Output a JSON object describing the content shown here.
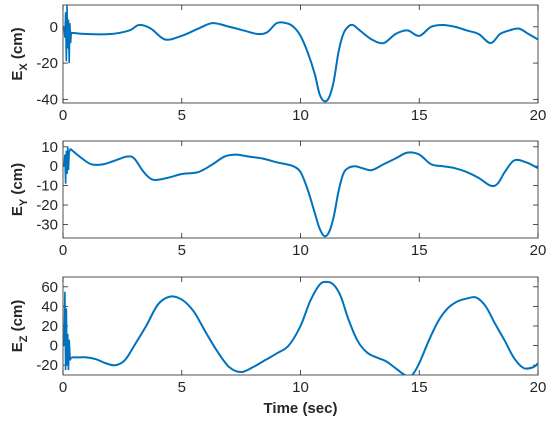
{
  "chart_data": [
    {
      "type": "line",
      "ylabel": "E",
      "ylabel_sub": "X",
      "ylabel_unit": " (cm)",
      "xlim": [
        0,
        20
      ],
      "ylim": [
        -42,
        12
      ],
      "xticks": [
        "0",
        "5",
        "10",
        "15",
        "20"
      ],
      "yticks": [
        -40,
        -20,
        0
      ],
      "color": "#0072BD",
      "grid": false,
      "series": [
        {
          "x": [
            0.1,
            1,
            2,
            2.8,
            3.2,
            3.7,
            4.3,
            5.0,
            5.7,
            6.3,
            7.0,
            7.6,
            8.2,
            8.6,
            9.0,
            9.4,
            9.7,
            10.0,
            10.3,
            10.6,
            10.8,
            11.0,
            11.2,
            11.4,
            11.6,
            11.8,
            12.0,
            12.2,
            12.5,
            13.0,
            13.5,
            14.0,
            14.5,
            15.0,
            15.5,
            16.0,
            16.5,
            17.0,
            17.5,
            18.0,
            18.4,
            18.8,
            19.2,
            19.6,
            20.0
          ],
          "y": [
            -3,
            -4,
            -4,
            -2,
            1,
            -1,
            -7,
            -5,
            -1,
            2,
            0,
            -2,
            -4,
            -3,
            2,
            2,
            0,
            -5,
            -14,
            -26,
            -37,
            -41,
            -39,
            -30,
            -14,
            -4,
            0,
            1,
            -2,
            -7,
            -9,
            -4,
            -2,
            -5,
            0,
            1,
            0,
            -2,
            -4,
            -9,
            -4,
            -2,
            -1,
            -4,
            -7
          ]
        }
      ],
      "transient": {
        "x": [
          0.05,
          0.08,
          0.11,
          0.14,
          0.17,
          0.2,
          0.23,
          0.26,
          0.29,
          0.32,
          0.35,
          0.38
        ],
        "y": [
          0,
          -6,
          8,
          -19,
          12,
          -12,
          4,
          -20,
          2,
          -9,
          -3,
          -4
        ]
      }
    },
    {
      "type": "line",
      "ylabel": "E",
      "ylabel_sub": "Y",
      "ylabel_unit": " (cm)",
      "xlim": [
        0,
        20
      ],
      "ylim": [
        -37,
        13
      ],
      "xticks": [
        "0",
        "5",
        "10",
        "15",
        "20"
      ],
      "yticks": [
        -30,
        -20,
        -10,
        0,
        10
      ],
      "color": "#0072BD",
      "grid": false,
      "series": [
        {
          "x": [
            0.3,
            0.8,
            1.2,
            1.7,
            2.2,
            2.7,
            3.0,
            3.4,
            3.8,
            4.4,
            5.0,
            5.7,
            6.3,
            6.8,
            7.3,
            7.8,
            8.4,
            9.0,
            9.4,
            9.7,
            10.0,
            10.3,
            10.6,
            10.8,
            11.0,
            11.2,
            11.4,
            11.6,
            11.8,
            12.0,
            12.3,
            12.6,
            13.0,
            13.5,
            14.0,
            14.5,
            15.0,
            15.5,
            16.0,
            16.5,
            17.0,
            17.5,
            18.0,
            18.3,
            18.6,
            19.0,
            19.5,
            20.0
          ],
          "y": [
            9,
            4,
            1,
            1,
            3,
            5,
            4,
            -3,
            -7,
            -6,
            -4,
            -3,
            1,
            5,
            6,
            5,
            4,
            2,
            1,
            0,
            -3,
            -12,
            -24,
            -32,
            -36,
            -34,
            -26,
            -13,
            -4,
            -1,
            0,
            -1,
            -2,
            1,
            4,
            7,
            6,
            1,
            0,
            -1,
            -3,
            -6,
            -10,
            -9,
            -3,
            3,
            2,
            -1
          ]
        }
      ],
      "transient": {
        "x": [
          0.05,
          0.08,
          0.11,
          0.14,
          0.17,
          0.2,
          0.23,
          0.26,
          0.3
        ],
        "y": [
          0,
          6,
          -9,
          8,
          -4,
          10,
          -2,
          7,
          9
        ]
      }
    },
    {
      "type": "line",
      "ylabel": "E",
      "ylabel_sub": "Z",
      "ylabel_unit": " (cm)",
      "xlim": [
        0,
        20
      ],
      "ylim": [
        -30,
        70
      ],
      "xticks": [
        "0",
        "5",
        "10",
        "15",
        "20"
      ],
      "yticks": [
        -20,
        0,
        20,
        40,
        60
      ],
      "color": "#0072BD",
      "grid": false,
      "xlabel": "Time (sec)",
      "series": [
        {
          "x": [
            0.35,
            0.7,
            1.0,
            1.4,
            1.8,
            2.2,
            2.6,
            3.0,
            3.5,
            4.0,
            4.5,
            5.0,
            5.5,
            6.0,
            6.5,
            7.0,
            7.5,
            8.0,
            8.5,
            9.0,
            9.5,
            10.0,
            10.4,
            10.8,
            11.1,
            11.4,
            11.7,
            12.0,
            12.4,
            12.8,
            13.2,
            13.6,
            14.0,
            14.4,
            14.7,
            15.0,
            15.4,
            15.8,
            16.2,
            16.6,
            17.0,
            17.4,
            17.8,
            18.2,
            18.6,
            19.0,
            19.4,
            19.8,
            20.0
          ],
          "y": [
            -12,
            -12,
            -12,
            -14,
            -18,
            -20,
            -15,
            0,
            20,
            42,
            50,
            47,
            35,
            14,
            -6,
            -22,
            -27,
            -22,
            -15,
            -8,
            0,
            20,
            45,
            62,
            65,
            62,
            50,
            28,
            5,
            -7,
            -12,
            -16,
            -23,
            -30,
            -30,
            -18,
            5,
            25,
            38,
            45,
            48,
            49,
            40,
            22,
            5,
            -13,
            -23,
            -22,
            -18
          ]
        }
      ],
      "transient": {
        "x": [
          0.05,
          0.08,
          0.11,
          0.14,
          0.17,
          0.2,
          0.23,
          0.26,
          0.3,
          0.35
        ],
        "y": [
          0,
          55,
          -25,
          38,
          -20,
          12,
          -25,
          6,
          -15,
          -12
        ]
      }
    }
  ]
}
